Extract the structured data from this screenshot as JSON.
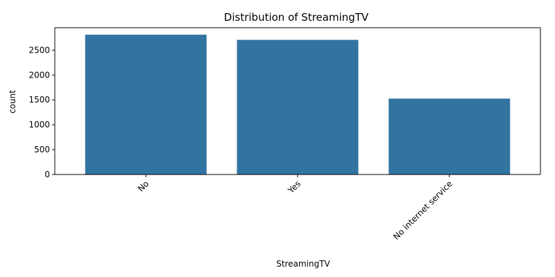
{
  "chart_data": {
    "type": "bar",
    "title": "Distribution of StreamingTV",
    "xlabel": "StreamingTV",
    "ylabel": "count",
    "categories": [
      "No",
      "Yes",
      "No internet service"
    ],
    "values": [
      2810,
      2707,
      1526
    ],
    "ylim": [
      0,
      2951
    ],
    "yticks": [
      0,
      500,
      1000,
      1500,
      2000,
      2500
    ],
    "grid": false,
    "legend": "none",
    "bar_color": "#3274a1",
    "xtick_rotation": 45
  }
}
